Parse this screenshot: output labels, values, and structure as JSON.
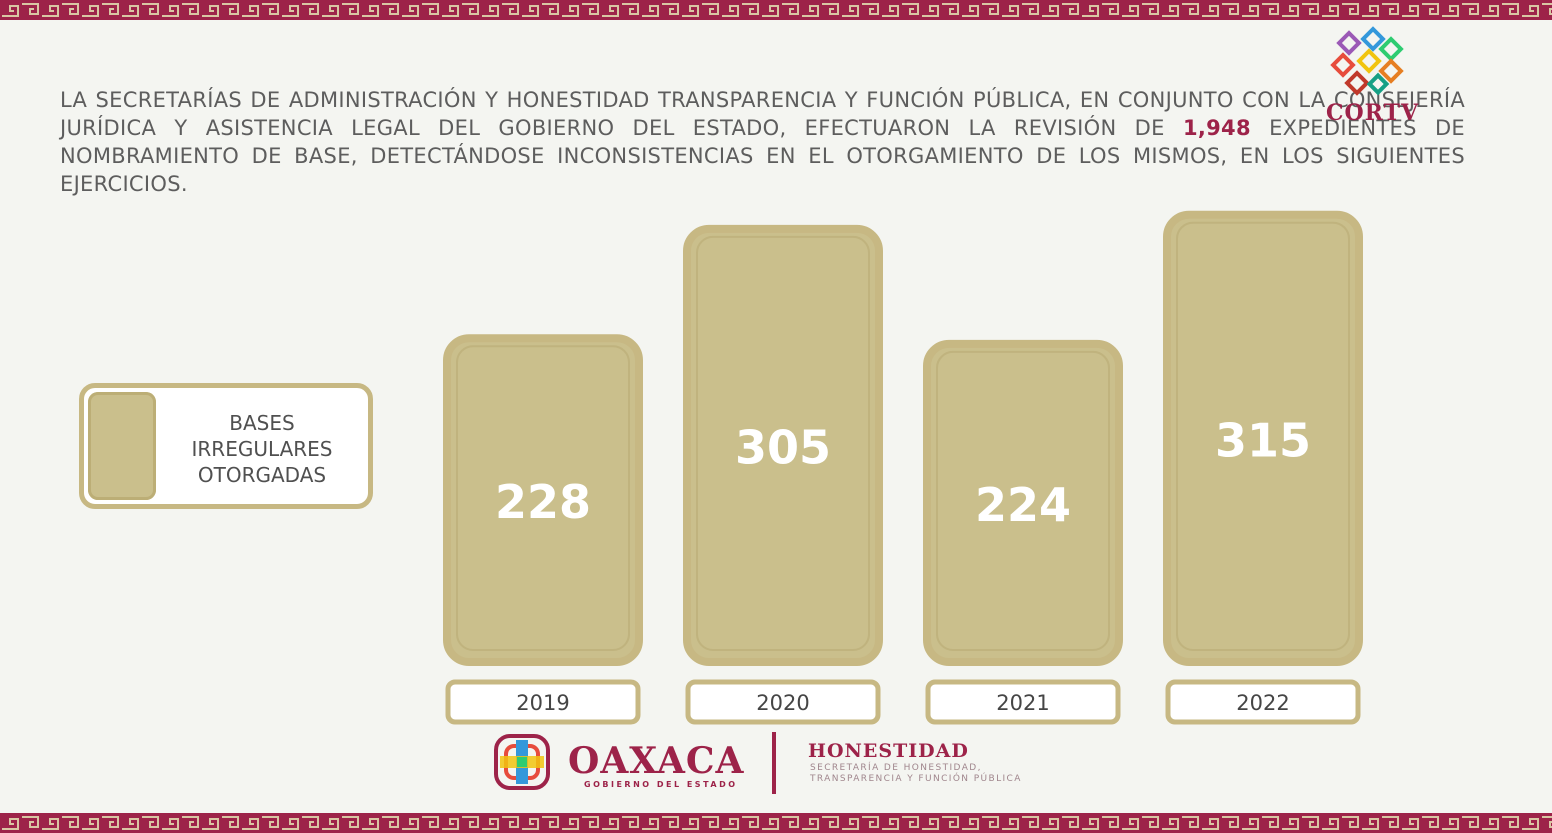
{
  "intro": {
    "text_before": "LA SECRETARÍAS DE ADMINISTRACIÓN Y HONESTIDAD TRANSPARENCIA Y FUNCIÓN PÚBLICA, EN CONJUNTO CON LA CONSEJERÍA JURÍDICA Y ASISTENCIA LEGAL DEL GOBIERNO DEL ESTADO, EFECTUARON LA REVISIÓN DE",
    "highlight": "1,948",
    "text_after": "EXPEDIENTES DE NOMBRAMIENTO DE BASE, DETECTÁNDOSE INCONSISTENCIAS EN EL OTORGAMIENTO DE LOS MISMOS, EN LOS SIGUIENTES EJERCICIOS."
  },
  "logos": {
    "cortv": "CORTV",
    "oaxaca": "OAXACA",
    "oaxaca_sub": "GOBIERNO DEL ESTADO",
    "honestidad": "HONESTIDAD",
    "honestidad_sub_1": "SECRETARÍA DE HONESTIDAD,",
    "honestidad_sub_2": "TRANSPARENCIA Y FUNCIÓN PÚBLICA"
  },
  "colors": {
    "bar_fill": "#cabf8c",
    "bar_border": "#c7b883",
    "brand": "#9d2349",
    "label_text": "#ffffff"
  },
  "chart_data": {
    "type": "bar",
    "categories": [
      "2019",
      "2020",
      "2021",
      "2022"
    ],
    "values": [
      228,
      305,
      224,
      315
    ],
    "value_labels": [
      "228",
      "305",
      "224",
      "315"
    ],
    "series": [
      {
        "name": "BASES IRREGULARES OTORGADAS",
        "values": [
          228,
          305,
          224,
          315
        ]
      }
    ],
    "legend": {
      "lines": [
        "BASES",
        "IRREGULARES",
        "OTORGADAS"
      ],
      "position": "left"
    },
    "title": "",
    "xlabel": "",
    "ylabel": "",
    "grid": false
  }
}
